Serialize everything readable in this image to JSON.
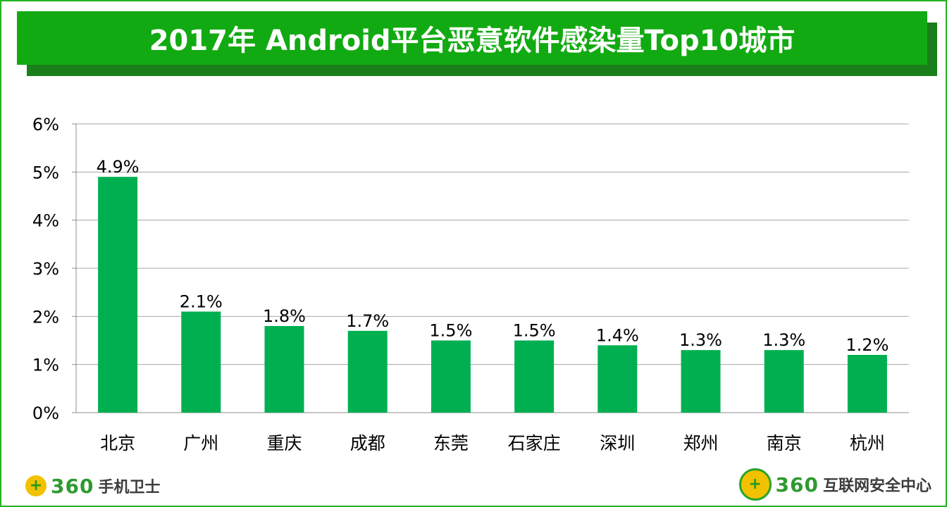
{
  "title": "2017年 Android平台恶意软件感染量Top10城市",
  "colors": {
    "bar": "#00B050",
    "banner": "#12AA12",
    "frame": "#22B422",
    "grid": "#A6A6A6"
  },
  "chart_data": {
    "type": "bar",
    "title": "2017年 Android平台恶意软件感染量Top10城市",
    "categories": [
      "北京",
      "广州",
      "重庆",
      "成都",
      "东莞",
      "石家庄",
      "深圳",
      "郑州",
      "南京",
      "杭州"
    ],
    "values": [
      4.9,
      2.1,
      1.8,
      1.7,
      1.5,
      1.5,
      1.4,
      1.3,
      1.3,
      1.2
    ],
    "data_labels": [
      "4.9%",
      "2.1%",
      "1.8%",
      "1.7%",
      "1.5%",
      "1.5%",
      "1.4%",
      "1.3%",
      "1.3%",
      "1.2%"
    ],
    "y_ticks": [
      "0%",
      "1%",
      "2%",
      "3%",
      "4%",
      "5%",
      "6%"
    ],
    "ylim": [
      0,
      6
    ],
    "unit": "%",
    "xlabel": "",
    "ylabel": "",
    "grid": true,
    "legend": "none"
  },
  "footer": {
    "left_logo_num": "360",
    "left_logo_text": "手机卫士",
    "right_logo_num": "360",
    "right_logo_text": "互联网安全中心",
    "logo_icon": "plus-shield-icon"
  }
}
